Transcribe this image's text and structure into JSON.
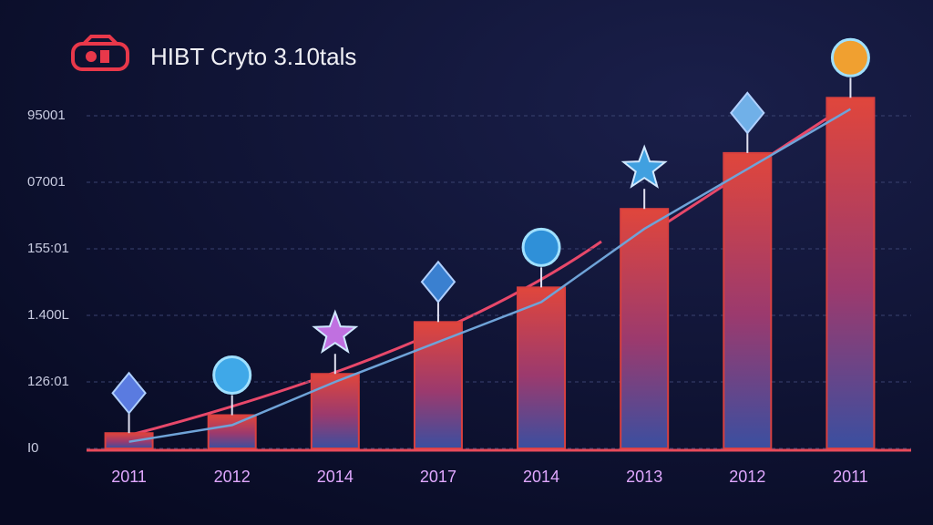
{
  "chart_data": {
    "type": "bar",
    "title": "HIBT Cryto 3.10tals",
    "categories": [
      "2011",
      "2012",
      "2014",
      "2017",
      "2014",
      "2013",
      "2012",
      "2011"
    ],
    "values": [
      0.23,
      0.5,
      1.12,
      1.9,
      2.42,
      3.6,
      4.44,
      5.27
    ],
    "color": "#d9403f",
    "line": {
      "color": "#6fa3d8",
      "values": [
        0.1,
        0.35,
        1.0,
        1.6,
        2.2,
        3.3,
        4.2,
        5.1
      ]
    },
    "ylim": [
      0,
      5.5
    ],
    "yticks": [
      {
        "value": 0,
        "label": "I0"
      },
      {
        "value": 1,
        "label": "126:01"
      },
      {
        "value": 2,
        "label": "1.400L"
      },
      {
        "value": 3,
        "label": "155:01"
      },
      {
        "value": 4,
        "label": "07001"
      },
      {
        "value": 5,
        "label": "95001"
      }
    ],
    "grid": true
  }
}
